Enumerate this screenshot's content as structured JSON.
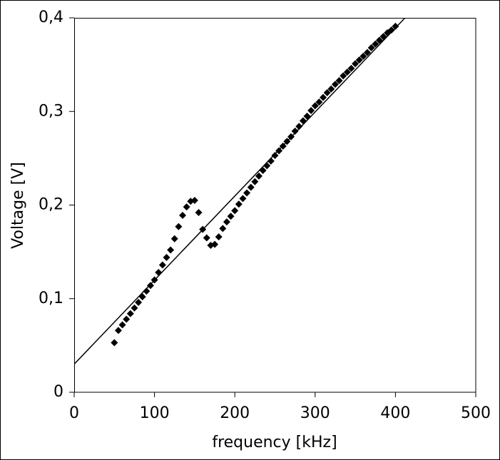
{
  "chart_data": {
    "type": "scatter",
    "x_label": "frequency [kHz]",
    "y_label": "Voltage [V]",
    "xlim": [
      0,
      500
    ],
    "xticks": [
      0,
      100,
      200,
      300,
      400,
      500
    ],
    "ylim": [
      0,
      0.4
    ],
    "yticks": [
      0,
      {
        "value": 0.1,
        "label": "0,1"
      },
      {
        "value": 0.2,
        "label": "0,2"
      },
      {
        "value": 0.3,
        "label": "0,3"
      },
      {
        "value": 0.4,
        "label": "0,4"
      }
    ],
    "grid": false,
    "series": [
      {
        "color": "#000000",
        "marker": "diamond",
        "x": [
          50,
          55,
          60,
          65,
          70,
          75,
          80,
          85,
          90,
          95,
          100,
          105,
          110,
          115,
          120,
          125,
          130,
          135,
          140,
          145,
          150,
          155,
          160,
          165,
          170,
          175,
          180,
          185,
          190,
          195,
          200,
          205,
          210,
          215,
          220,
          225,
          230,
          235,
          240,
          245,
          250,
          255,
          260,
          265,
          270,
          275,
          280,
          285,
          290,
          295,
          300,
          305,
          310,
          315,
          320,
          325,
          330,
          335,
          340,
          345,
          350,
          355,
          360,
          365,
          370,
          375,
          380,
          385,
          390,
          395,
          400
        ],
        "values": [
          0.053,
          0.066,
          0.072,
          0.078,
          0.084,
          0.09,
          0.096,
          0.102,
          0.108,
          0.114,
          0.12,
          0.128,
          0.136,
          0.144,
          0.152,
          0.164,
          0.177,
          0.189,
          0.198,
          0.204,
          0.205,
          0.192,
          0.174,
          0.165,
          0.157,
          0.158,
          0.166,
          0.175,
          0.182,
          0.188,
          0.194,
          0.201,
          0.207,
          0.213,
          0.219,
          0.225,
          0.231,
          0.237,
          0.242,
          0.247,
          0.253,
          0.258,
          0.263,
          0.268,
          0.273,
          0.279,
          0.284,
          0.29,
          0.295,
          0.301,
          0.306,
          0.31,
          0.315,
          0.32,
          0.324,
          0.329,
          0.333,
          0.338,
          0.342,
          0.346,
          0.351,
          0.355,
          0.359,
          0.363,
          0.368,
          0.372,
          0.376,
          0.38,
          0.384,
          0.387,
          0.391
        ]
      },
      {
        "color": "#000000",
        "marker": "none",
        "x": [
          0,
          412
        ],
        "values": [
          0.03,
          0.4
        ]
      }
    ]
  }
}
